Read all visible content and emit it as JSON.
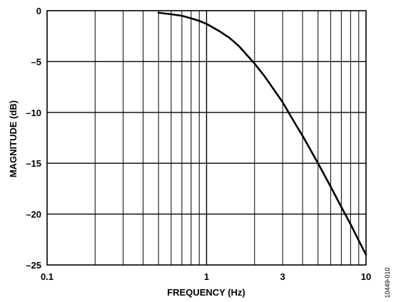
{
  "figure_id": "10449-010",
  "chart_data": {
    "type": "line",
    "title": "",
    "xlabel": "FREQUENCY (Hz)",
    "ylabel": "MAGNITUDE (dB)",
    "xscale": "log",
    "xlim": [
      0.1,
      10
    ],
    "ylim": [
      -25,
      0
    ],
    "grid": true,
    "x_ticks": [
      {
        "value": 0.1,
        "label": "0.1"
      },
      {
        "value": 1,
        "label": "1"
      },
      {
        "value": 3,
        "label": "3"
      },
      {
        "value": 10,
        "label": "10"
      }
    ],
    "y_ticks": [
      {
        "value": 0,
        "label": "0"
      },
      {
        "value": -5,
        "label": "–5"
      },
      {
        "value": -10,
        "label": "–10"
      },
      {
        "value": -15,
        "label": "–15"
      },
      {
        "value": -20,
        "label": "–20"
      },
      {
        "value": -25,
        "label": "–25"
      }
    ],
    "series": [
      {
        "color": "#000000",
        "x": [
          0.5,
          0.6,
          0.7,
          0.8,
          0.9,
          1.0,
          1.2,
          1.4,
          1.6,
          1.8,
          2.0,
          2.3,
          2.6,
          3.0,
          3.5,
          4.0,
          5.0,
          6.0,
          7.0,
          8.0,
          9.0,
          10.0
        ],
        "y": [
          -0.2,
          -0.35,
          -0.5,
          -0.75,
          -1.0,
          -1.3,
          -2.0,
          -2.7,
          -3.5,
          -4.4,
          -5.2,
          -6.4,
          -7.6,
          -9.0,
          -10.8,
          -12.3,
          -15.0,
          -17.3,
          -19.3,
          -21.0,
          -22.6,
          -24.0
        ]
      }
    ]
  }
}
